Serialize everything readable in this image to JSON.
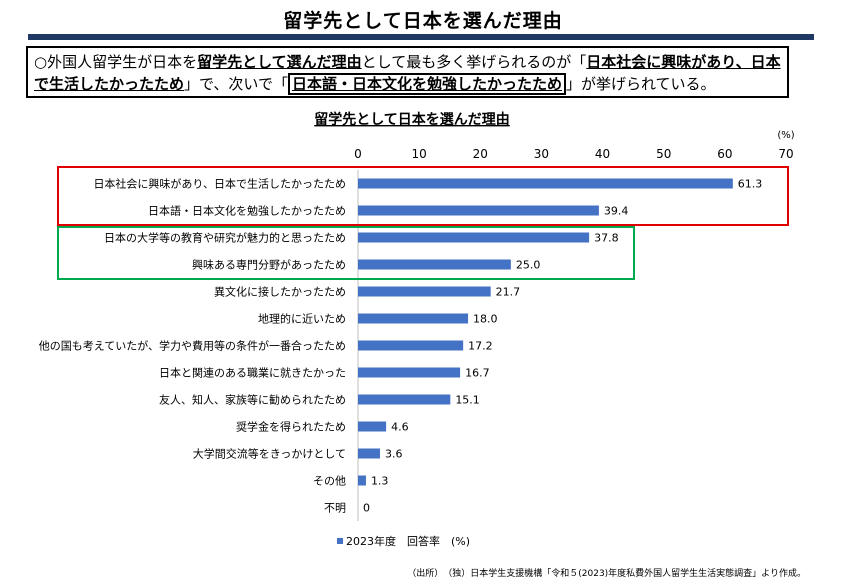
{
  "page": {
    "title": "留学先として日本を選んだ理由",
    "summary": {
      "p1": "○外国人留学生が日本を",
      "b1": "留学先として選んだ理由",
      "p2": "として最も多く挙げられるのが「",
      "b2": "日本社会に興味があり、日本で生活したかったため",
      "p3": "」で、次いで「",
      "b3": "日本語・日本文化を勉強したかったため",
      "p4": "」が挙げられている。"
    },
    "source": "（出所）　（独）日本学生支援機構「令和５(2023)年度私費外国人留学生生活実態調査」より作成。"
  },
  "chart_data": {
    "type": "bar",
    "orientation": "horizontal",
    "title": "留学先として日本を選んだ理由",
    "unit": "(%)",
    "xlim": [
      0,
      70
    ],
    "ticks": [
      0,
      10,
      20,
      30,
      40,
      50,
      60,
      70
    ],
    "legend": "2023年度　回答率　(%)",
    "bar_color": "#4472c4",
    "categories": [
      "日本社会に興味があり、日本で生活したかったため",
      "日本語・日本文化を勉強したかったため",
      "日本の大学等の教育や研究が魅力的と思ったため",
      "興味ある専門分野があったため",
      "異文化に接したかったため",
      "地理的に近いため",
      "他の国も考えていたが、学力や費用等の条件が一番合ったため",
      "日本と関連のある職業に就きたかった",
      "友人、知人、家族等に勧められたため",
      "奨学金を得られたため",
      "大学間交流等をきっかけとして",
      "その他",
      "不明"
    ],
    "values": [
      61.3,
      39.4,
      37.8,
      25.0,
      21.7,
      18.0,
      17.2,
      16.7,
      15.1,
      4.6,
      3.6,
      1.3,
      0
    ],
    "value_labels": [
      "61.3",
      "39.4",
      "37.8",
      "25.0",
      "21.7",
      "18.0",
      "17.2",
      "16.7",
      "15.1",
      "4.6",
      "3.6",
      "1.3",
      "0"
    ],
    "highlight_colors": {
      "red": "#e00000",
      "green": "#00a84f"
    }
  }
}
